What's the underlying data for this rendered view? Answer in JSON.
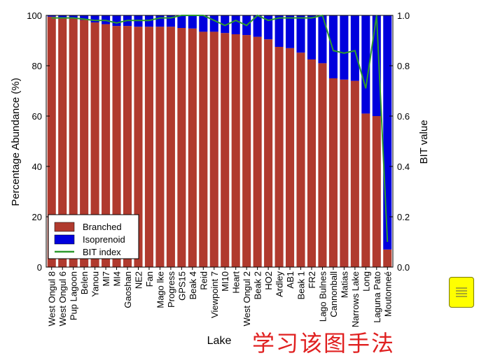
{
  "chart_data": {
    "type": "bar",
    "stacked": true,
    "xlabel": "Lake",
    "ylabel": "Percentage Abundance (%)",
    "y2label": "BIT value",
    "ylim": [
      0,
      100
    ],
    "y2lim": [
      0,
      1.0
    ],
    "yticks": [
      "0",
      "20",
      "40",
      "60",
      "80",
      "100"
    ],
    "y2ticks": [
      "0.0",
      "0.2",
      "0.4",
      "0.6",
      "0.8",
      "1.0"
    ],
    "grid": false,
    "legend_position": "bottom-left",
    "categories": [
      "West Ongul 8",
      "West Ongul 6",
      "Pup Lagoon",
      "Belen",
      "Yanou",
      "MI7",
      "MI4",
      "Gaoshan",
      "NE2",
      "Fan",
      "Mago lke",
      "Progress",
      "GPS15",
      "Beak 4",
      "Reid",
      "Viewpoint 7",
      "MI10",
      "Heart",
      "West Ongul 2",
      "Beak 2",
      "HO2",
      "Ardley",
      "AB1",
      "Beak 1",
      "FR2",
      "Lago Bulnes",
      "Cannonball",
      "Matias",
      "Narrows Lake",
      "Long",
      "Laguna Pato",
      "Moutonneé"
    ],
    "series": [
      {
        "name": "Branched",
        "color": "#b03a2e",
        "axis": "left",
        "values": [
          99.5,
          99.2,
          98.8,
          98.2,
          97.2,
          96.5,
          95.8,
          95.8,
          95.5,
          95.5,
          95.5,
          95.5,
          95.0,
          94.8,
          93.5,
          93.5,
          93.0,
          92.5,
          92.2,
          91.5,
          90.5,
          87.5,
          87.0,
          85.2,
          82.5,
          81.0,
          75.0,
          74.5,
          74.0,
          61.0,
          60.0,
          7.0
        ]
      },
      {
        "name": "Isoprenoid",
        "color": "#0000dd",
        "axis": "left",
        "values": [
          0.5,
          0.8,
          1.2,
          1.8,
          2.8,
          3.5,
          4.2,
          4.2,
          4.5,
          4.5,
          4.5,
          4.5,
          5.0,
          5.2,
          6.5,
          6.5,
          7.0,
          7.5,
          7.8,
          8.5,
          9.5,
          12.5,
          13.0,
          14.8,
          17.5,
          19.0,
          25.0,
          25.5,
          26.0,
          39.0,
          40.0,
          93.0
        ]
      },
      {
        "name": "BIT index",
        "color": "#2e9a2e",
        "axis": "right",
        "type": "line",
        "values": [
          0.99,
          0.99,
          0.99,
          0.985,
          0.98,
          0.98,
          0.97,
          0.98,
          0.98,
          0.98,
          0.99,
          0.99,
          1.0,
          1.0,
          1.0,
          0.98,
          0.96,
          0.98,
          0.96,
          1.0,
          0.98,
          0.99,
          0.99,
          0.99,
          0.99,
          1.0,
          0.86,
          0.85,
          0.86,
          0.71,
          1.0,
          0.1
        ]
      }
    ]
  },
  "watermark": "学习该图手法",
  "note_icon": "list-lines-icon"
}
